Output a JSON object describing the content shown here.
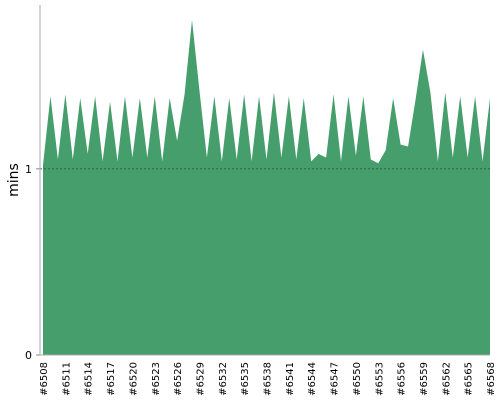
{
  "chart_data": {
    "type": "area",
    "y_label": "mins",
    "color": "#459e6c",
    "categories": [
      "#6508",
      null,
      null,
      "#6511",
      null,
      null,
      "#6514",
      null,
      null,
      "#6517",
      null,
      null,
      "#6520",
      null,
      null,
      "#6523",
      null,
      null,
      "#6526",
      null,
      null,
      "#6529",
      null,
      null,
      "#6532",
      null,
      null,
      "#6535",
      null,
      null,
      "#6538",
      null,
      null,
      "#6541",
      null,
      null,
      "#6544",
      null,
      null,
      "#6547",
      null,
      null,
      "#6550",
      null,
      null,
      "#6553",
      null,
      null,
      "#6556",
      null,
      null,
      "#6559",
      null,
      null,
      "#6562",
      null,
      null,
      "#6565",
      null,
      null,
      "#6568"
    ],
    "values": [
      1.02,
      1.39,
      1.05,
      1.4,
      1.05,
      1.38,
      1.08,
      1.39,
      1.04,
      1.36,
      1.04,
      1.39,
      1.06,
      1.38,
      1.06,
      1.39,
      1.04,
      1.38,
      1.15,
      1.4,
      1.8,
      1.42,
      1.06,
      1.39,
      1.04,
      1.38,
      1.05,
      1.4,
      1.04,
      1.39,
      1.05,
      1.41,
      1.06,
      1.39,
      1.05,
      1.38,
      1.04,
      1.08,
      1.06,
      1.4,
      1.04,
      1.39,
      1.07,
      1.39,
      1.05,
      1.03,
      1.1,
      1.38,
      1.13,
      1.12,
      1.37,
      1.64,
      1.41,
      1.04,
      1.41,
      1.06,
      1.39,
      1.06,
      1.39,
      1.04,
      1.38
    ],
    "ylim": [
      0,
      1.88
    ],
    "yticks": [
      0,
      1
    ],
    "grid": true
  }
}
